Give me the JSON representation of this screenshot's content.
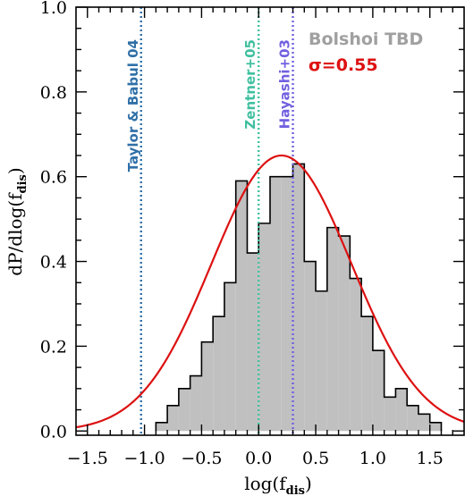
{
  "chart_data": {
    "type": "bar",
    "xlabel": "log(f",
    "xlabel_sub": "dis",
    "xlabel_close": ")",
    "ylabel": "dP/dlog(f",
    "ylabel_sub": "dis",
    "ylabel_close": ")",
    "xlim": [
      -1.6,
      1.8
    ],
    "ylim": [
      -0.01,
      1.0
    ],
    "x_ticks": [
      -1.5,
      -1.0,
      -0.5,
      0.0,
      0.5,
      1.0,
      1.5
    ],
    "x_tick_labels": [
      "−1.5",
      "−1.0",
      "−0.5",
      "0.0",
      "0.5",
      "1.0",
      "1.5"
    ],
    "y_ticks": [
      0.0,
      0.2,
      0.4,
      0.6,
      0.8,
      1.0
    ],
    "y_tick_labels": [
      "0.0",
      "0.2",
      "0.4",
      "0.6",
      "0.8",
      "1.0"
    ],
    "legend": {
      "histogram_label": "Bolshoi TBD",
      "histogram_color": "#a0a0a0",
      "fit_label": "σ=0.55",
      "fit_color": "#dd1111",
      "placement": "top-right"
    },
    "histogram": {
      "name": "Bolshoi TBD",
      "fill": "#c0c0c0",
      "bin_edges": [
        -0.9,
        -0.8,
        -0.7,
        -0.6,
        -0.5,
        -0.4,
        -0.3,
        -0.2,
        -0.1,
        0.0,
        0.1,
        0.2,
        0.3,
        0.4,
        0.5,
        0.6,
        0.7,
        0.8,
        0.9,
        1.0,
        1.1,
        1.2,
        1.3,
        1.4,
        1.5,
        1.6
      ],
      "values": [
        0.02,
        0.06,
        0.1,
        0.13,
        0.21,
        0.27,
        0.35,
        0.59,
        0.42,
        0.49,
        0.6,
        0.6,
        0.63,
        0.4,
        0.33,
        0.48,
        0.46,
        0.36,
        0.27,
        0.19,
        0.08,
        0.1,
        0.06,
        0.04,
        0.02
      ]
    },
    "fit": {
      "name": "σ=0.55",
      "type": "gaussian",
      "mu": 0.2,
      "peak": 0.65,
      "color": "#dd1111"
    },
    "reference_lines": [
      {
        "x": -1.03,
        "label": "Taylor & Babul 04",
        "color": "#3070a8"
      },
      {
        "x": 0.0,
        "label": "Zentner+05",
        "color": "#40c0a0"
      },
      {
        "x": 0.3,
        "label": "Hayashi+03",
        "color": "#7060e0"
      }
    ]
  }
}
